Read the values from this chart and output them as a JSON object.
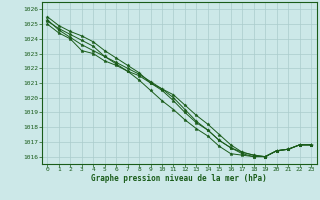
{
  "xlabel": "Graphe pression niveau de la mer (hPa)",
  "bg_color": "#cce8e8",
  "grid_color": "#aacccc",
  "line_color": "#1a5c1a",
  "marker_color": "#1a5c1a",
  "ylim": [
    1015.5,
    1026.5
  ],
  "xlim": [
    -0.5,
    23.5
  ],
  "yticks": [
    1016,
    1017,
    1018,
    1019,
    1020,
    1021,
    1022,
    1023,
    1024,
    1025,
    1026
  ],
  "xticks": [
    0,
    1,
    2,
    3,
    4,
    5,
    6,
    7,
    8,
    9,
    10,
    11,
    12,
    13,
    14,
    15,
    16,
    17,
    18,
    19,
    20,
    21,
    22,
    23
  ],
  "series": [
    [
      1025.5,
      1024.9,
      1024.5,
      1024.2,
      1023.8,
      1023.2,
      1022.7,
      1022.2,
      1021.7,
      1021.0,
      1020.5,
      1019.8,
      1019.0,
      1018.3,
      1017.8,
      1017.1,
      1016.6,
      1016.3,
      1016.1,
      1016.0,
      1016.4,
      1016.5,
      1016.8,
      1016.8
    ],
    [
      1025.2,
      1024.7,
      1024.3,
      1023.9,
      1023.5,
      1022.8,
      1022.3,
      1021.8,
      1021.2,
      1020.5,
      1019.8,
      1019.2,
      1018.5,
      1017.9,
      1017.4,
      1016.7,
      1016.2,
      1016.1,
      1016.0,
      1016.0,
      1016.4,
      1016.5,
      1016.8,
      1016.8
    ],
    [
      1025.0,
      1024.4,
      1024.0,
      1023.2,
      1023.0,
      1022.5,
      1022.2,
      1021.8,
      1021.5,
      1021.0,
      1020.6,
      1020.2,
      1019.5,
      1018.8,
      1018.2,
      1017.5,
      1016.8,
      1016.3,
      1016.1,
      1016.0,
      1016.4,
      1016.5,
      1016.8,
      1016.8
    ],
    [
      1025.3,
      1024.6,
      1024.1,
      1023.6,
      1023.2,
      1022.8,
      1022.4,
      1022.0,
      1021.6,
      1021.1,
      1020.6,
      1020.0,
      1019.2,
      1018.4,
      1017.8,
      1017.1,
      1016.6,
      1016.2,
      1016.0,
      1016.0,
      1016.4,
      1016.5,
      1016.8,
      1016.8
    ]
  ]
}
